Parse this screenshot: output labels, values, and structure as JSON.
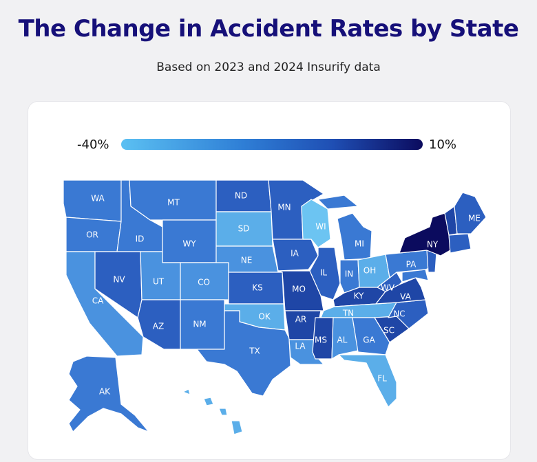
{
  "header": {
    "title": "The Change in Accident Rates by State",
    "subtitle": "Based on 2023 and 2024 Insurify data"
  },
  "legend": {
    "min_label": "-40%",
    "max_label": "10%",
    "min_color": "#5bc0f2",
    "max_color": "#0b0b5e"
  },
  "colors": {
    "c1": "#0b0b5e",
    "c2": "#1f46a6",
    "c3": "#2c5fc0",
    "c4": "#3a79d3",
    "c5": "#4a92df",
    "c6": "#5baee9",
    "c7": "#6cc4f2"
  },
  "states": {
    "WA": "WA",
    "OR": "OR",
    "CA": "CA",
    "ID": "ID",
    "NV": "NV",
    "MT": "MT",
    "WY": "WY",
    "UT": "UT",
    "AZ": "AZ",
    "CO": "CO",
    "NM": "NM",
    "ND": "ND",
    "SD": "SD",
    "NE": "NE",
    "KS": "KS",
    "OK": "OK",
    "TX": "TX",
    "MN": "MN",
    "IA": "IA",
    "MO": "MO",
    "AR": "AR",
    "LA": "LA",
    "WI": "WI",
    "IL": "IL",
    "MI": "MI",
    "IN": "IN",
    "OH": "OH",
    "KY": "KY",
    "TN": "TN",
    "MS": "MS",
    "AL": "AL",
    "GA": "GA",
    "FL": "FL",
    "SC": "SC",
    "NC": "NC",
    "VA": "VA",
    "WV": "WV",
    "PA": "PA",
    "NY": "NY",
    "ME": "ME",
    "AK": "AK"
  }
}
